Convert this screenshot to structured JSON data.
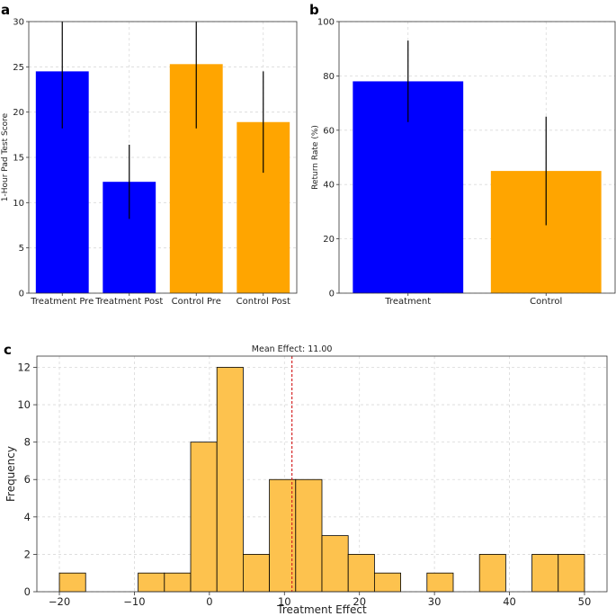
{
  "chart_data": [
    {
      "panel": "a",
      "type": "bar",
      "categories": [
        "Treatment Pre",
        "Treatment Post",
        "Control Pre",
        "Control Post"
      ],
      "values": [
        24.5,
        12.3,
        25.3,
        18.9
      ],
      "errors": [
        6.3,
        4.1,
        7.1,
        5.6
      ],
      "colors": [
        "#0000ff",
        "#0000ff",
        "#ffa500",
        "#ffa500"
      ],
      "ylabel": "1-Hour Pad Test Score",
      "xlabel": "",
      "ylim": [
        0,
        30
      ],
      "yticks": [
        0,
        5,
        10,
        15,
        20,
        25,
        30
      ],
      "grid": true
    },
    {
      "panel": "b",
      "type": "bar",
      "categories": [
        "Treatment",
        "Control"
      ],
      "values": [
        78,
        45
      ],
      "errors": [
        15,
        20
      ],
      "colors": [
        "#0000ff",
        "#ffa500"
      ],
      "ylabel": "Return Rate (%)",
      "xlabel": "",
      "ylim": [
        0,
        100
      ],
      "yticks": [
        0,
        20,
        40,
        60,
        80,
        100
      ],
      "grid": true
    },
    {
      "panel": "c",
      "type": "histogram",
      "bin_edges": [
        -20,
        -16.5,
        -13,
        -9.5,
        -6,
        -2.5,
        1,
        4.5,
        8,
        11.5,
        15,
        18.5,
        22,
        25.5,
        29,
        32.5,
        36,
        39.5,
        43,
        46.5,
        50
      ],
      "counts": [
        1,
        0,
        0,
        1,
        1,
        8,
        12,
        2,
        6,
        6,
        3,
        2,
        1,
        0,
        1,
        0,
        2,
        0,
        2,
        2
      ],
      "bar_color": "#fdc24e",
      "edge_color": "#000000",
      "mean": 11.0,
      "mean_label": "Mean Effect: 11.00",
      "mean_line_color": "#d62728",
      "xlabel": "Treatment Effect",
      "ylabel": "Frequency",
      "xlim": [
        -23,
        53
      ],
      "ylim": [
        0,
        12.6
      ],
      "xticks": [
        -20,
        -10,
        0,
        10,
        20,
        30,
        40,
        50
      ],
      "yticks": [
        0,
        2,
        4,
        6,
        8,
        10,
        12
      ],
      "grid": true
    }
  ]
}
